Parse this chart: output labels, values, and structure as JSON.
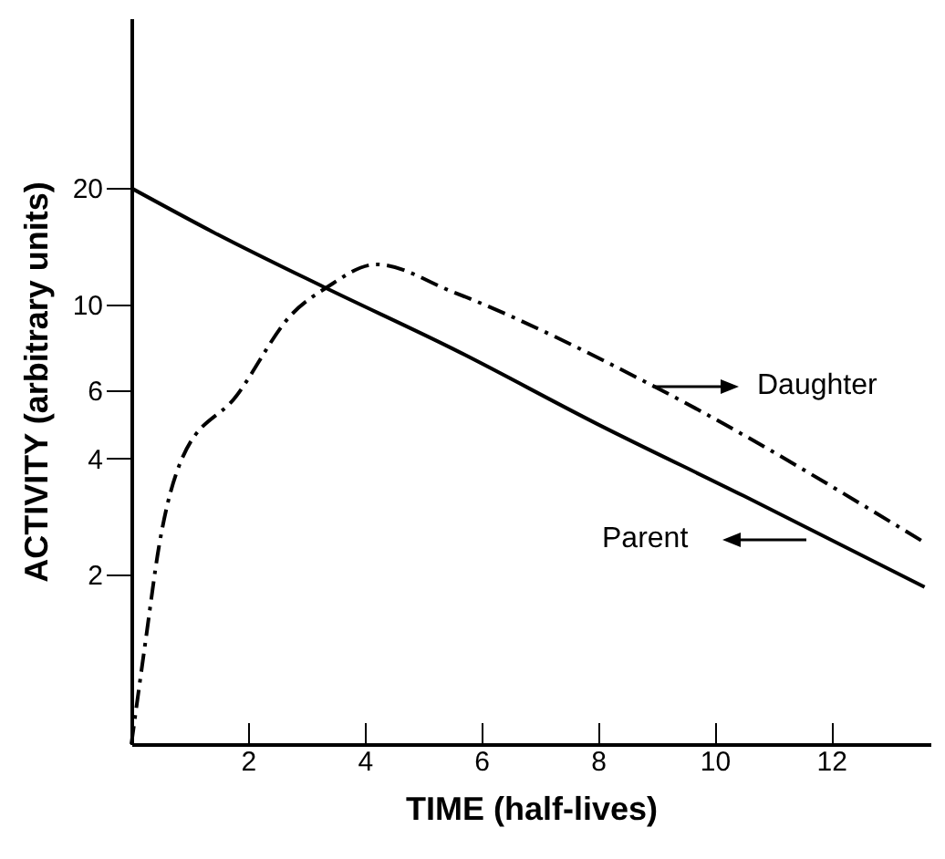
{
  "chart_data": {
    "type": "line",
    "xlabel": "TIME (half-lives)",
    "ylabel": "ACTIVITY (arbitrary units)",
    "log": "y",
    "xlim": [
      0,
      13.7
    ],
    "xticks": [
      2,
      4,
      6,
      8,
      10,
      12
    ],
    "ylim": [
      0.73,
      55
    ],
    "yticks": [
      2,
      4,
      6,
      10,
      20
    ],
    "series": [
      {
        "color": "#000000",
        "line_style": "solid",
        "x": [
          0,
          1.4,
          3.3,
          5.5,
          8,
          10.5,
          13.6
        ],
        "values": [
          20,
          15.4,
          11.1,
          7.7,
          4.9,
          3.2,
          1.86
        ]
      },
      {
        "color": "#000000",
        "line_style": "dashdot",
        "x": [
          0,
          0.25,
          0.47,
          0.87,
          1.8,
          2.74,
          3.36,
          4.2,
          5.5,
          9.0,
          13.55
        ],
        "values": [
          0.73,
          1.37,
          2.35,
          4.0,
          5.8,
          9.4,
          11.1,
          12.7,
          10.8,
          6.1,
          2.45
        ]
      }
    ],
    "annotations": [
      "Daughter",
      "Parent"
    ],
    "grid": false,
    "marker": "none"
  }
}
